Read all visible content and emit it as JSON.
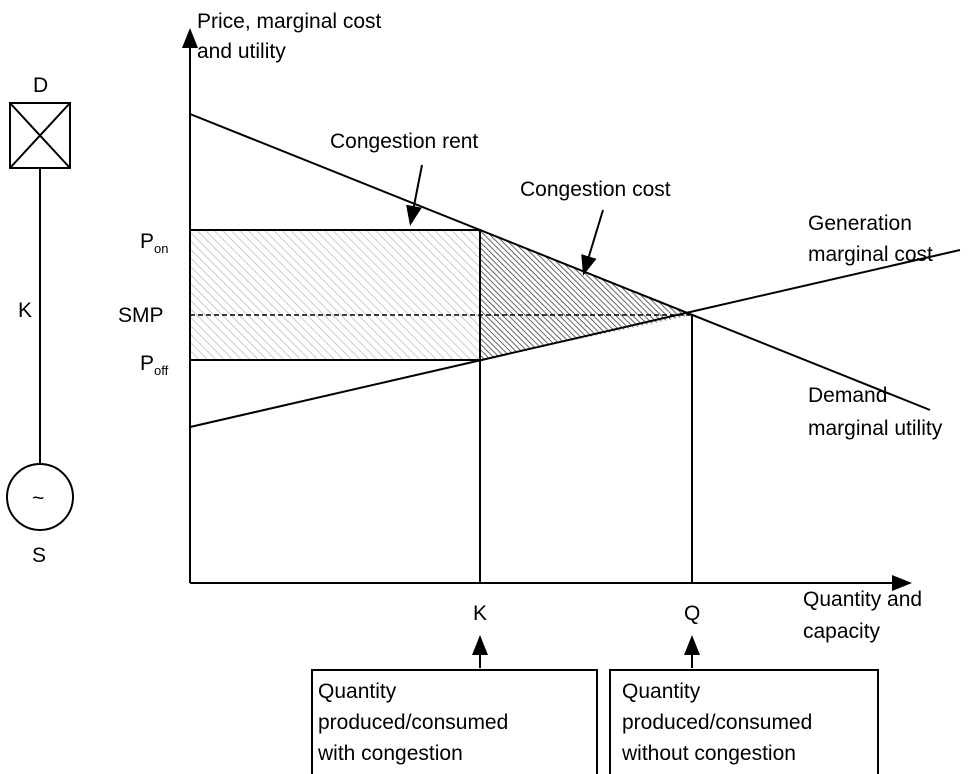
{
  "schematic": {
    "top_label": "D",
    "line_label": "K",
    "generator_symbol": "~",
    "bottom_label": "S"
  },
  "axes": {
    "y_label": [
      "Price, marginal cost",
      "and utility"
    ],
    "x_label": [
      "Quantity and",
      "capacity"
    ]
  },
  "price_labels": {
    "p_on": {
      "main": "P",
      "sub": "on"
    },
    "smp": "SMP",
    "p_off": {
      "main": "P",
      "sub": "off"
    }
  },
  "quantity_labels": {
    "k": "K",
    "q": "Q"
  },
  "curves": {
    "supply": [
      "Generation",
      "marginal cost"
    ],
    "demand": [
      "Demand",
      "marginal utility"
    ]
  },
  "annotations": {
    "rent": "Congestion rent",
    "cost": "Congestion cost"
  },
  "boxes": [
    [
      "Quantity",
      "produced/consumed",
      "with congestion"
    ],
    [
      "Quantity",
      "produced/consumed",
      "without congestion"
    ]
  ]
}
